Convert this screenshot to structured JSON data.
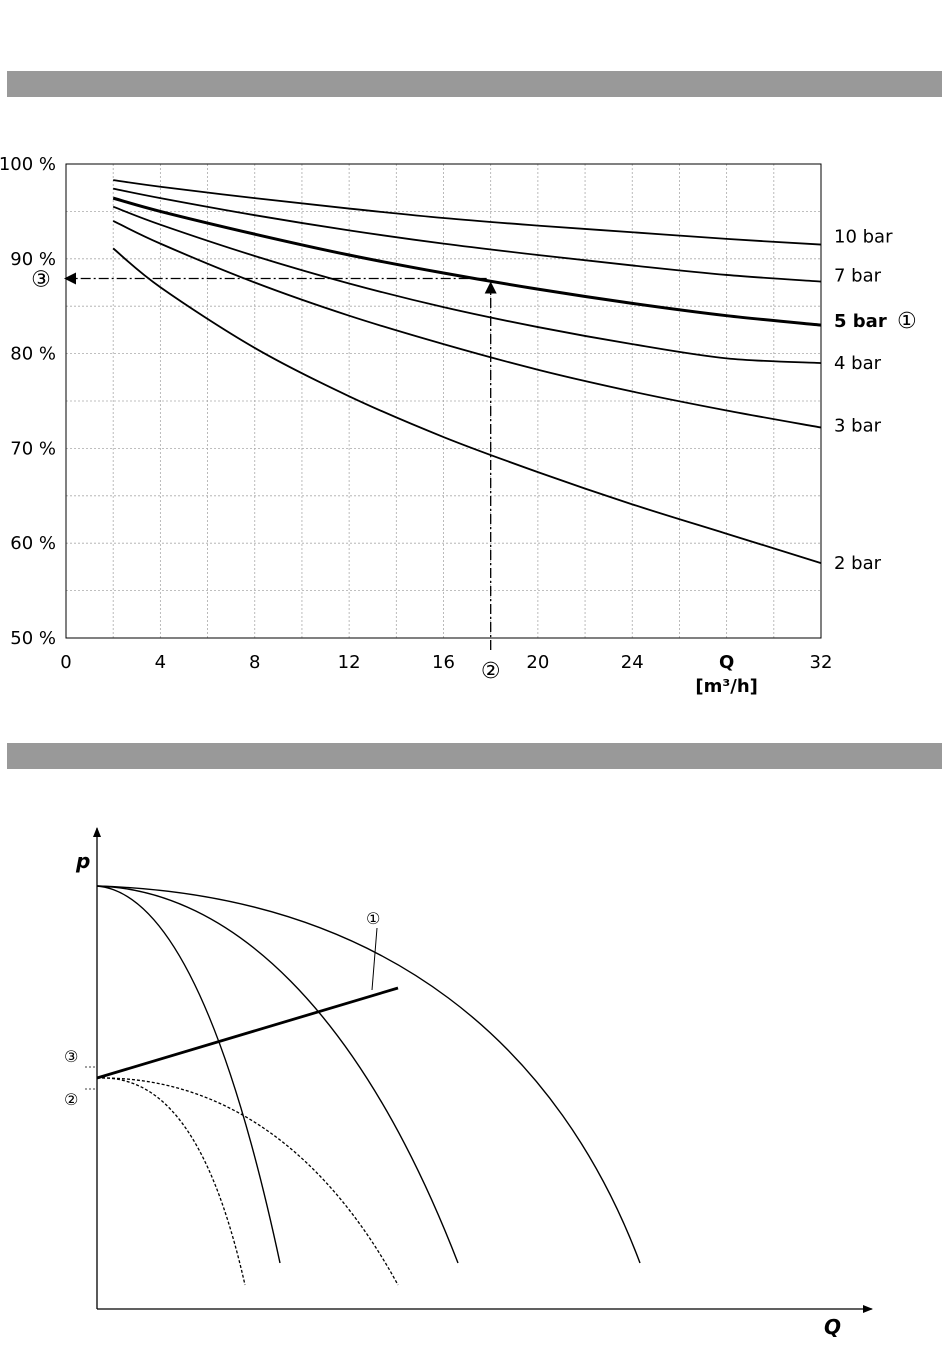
{
  "header_bars": 2,
  "chart_data": [
    {
      "type": "line",
      "title": "",
      "xlabel": "Q",
      "xunit": "[m³/h]",
      "ylabel": "",
      "xlim": [
        0,
        32
      ],
      "ylim": [
        50,
        100
      ],
      "x_ticks": [
        "0",
        "4",
        "8",
        "12",
        "16",
        "20",
        "24",
        "32"
      ],
      "x_tick_values": [
        0,
        4,
        8,
        12,
        16,
        20,
        24,
        32
      ],
      "y_ticks": [
        "100 %",
        "90 %",
        "80 %",
        "70 %",
        "60 %",
        "50 %"
      ],
      "y_tick_values": [
        100,
        90,
        80,
        70,
        60,
        50
      ],
      "grid": true,
      "x": [
        2,
        4,
        8,
        12,
        16,
        20,
        24,
        28,
        32
      ],
      "series": [
        {
          "name": "10 bar",
          "values": [
            98.3,
            97.6,
            96.4,
            95.3,
            94.3,
            93.5,
            92.8,
            92.1,
            91.5
          ],
          "bold": false
        },
        {
          "name": "7 bar",
          "values": [
            97.4,
            96.4,
            94.6,
            93.0,
            91.6,
            90.4,
            89.3,
            88.3,
            87.6
          ],
          "bold": false
        },
        {
          "name": "5 bar",
          "values": [
            96.4,
            95.0,
            92.6,
            90.4,
            88.5,
            86.8,
            85.3,
            84.0,
            83.0
          ],
          "bold": true
        },
        {
          "name": "4 bar",
          "values": [
            95.5,
            93.6,
            90.3,
            87.4,
            84.9,
            82.8,
            81.0,
            79.5,
            79.0
          ],
          "bold": false
        },
        {
          "name": "3 bar",
          "values": [
            94.0,
            91.6,
            87.5,
            84.0,
            81.0,
            78.3,
            76.0,
            74.0,
            72.2
          ],
          "bold": false
        },
        {
          "name": "2 bar",
          "values": [
            91.1,
            87.0,
            80.6,
            75.5,
            71.2,
            67.5,
            64.1,
            61.0,
            57.9
          ],
          "bold": false
        }
      ],
      "guide": {
        "x": 18,
        "y": 87.5
      },
      "markers": {
        "m1": "①",
        "m2": "②",
        "m3": "③"
      }
    },
    {
      "type": "line",
      "title": "",
      "xlabel": "Q",
      "ylabel": "p",
      "markers": {
        "m1": "①",
        "m2": "②",
        "m3": "③"
      },
      "note": "qualitative pump curves without scale"
    }
  ]
}
